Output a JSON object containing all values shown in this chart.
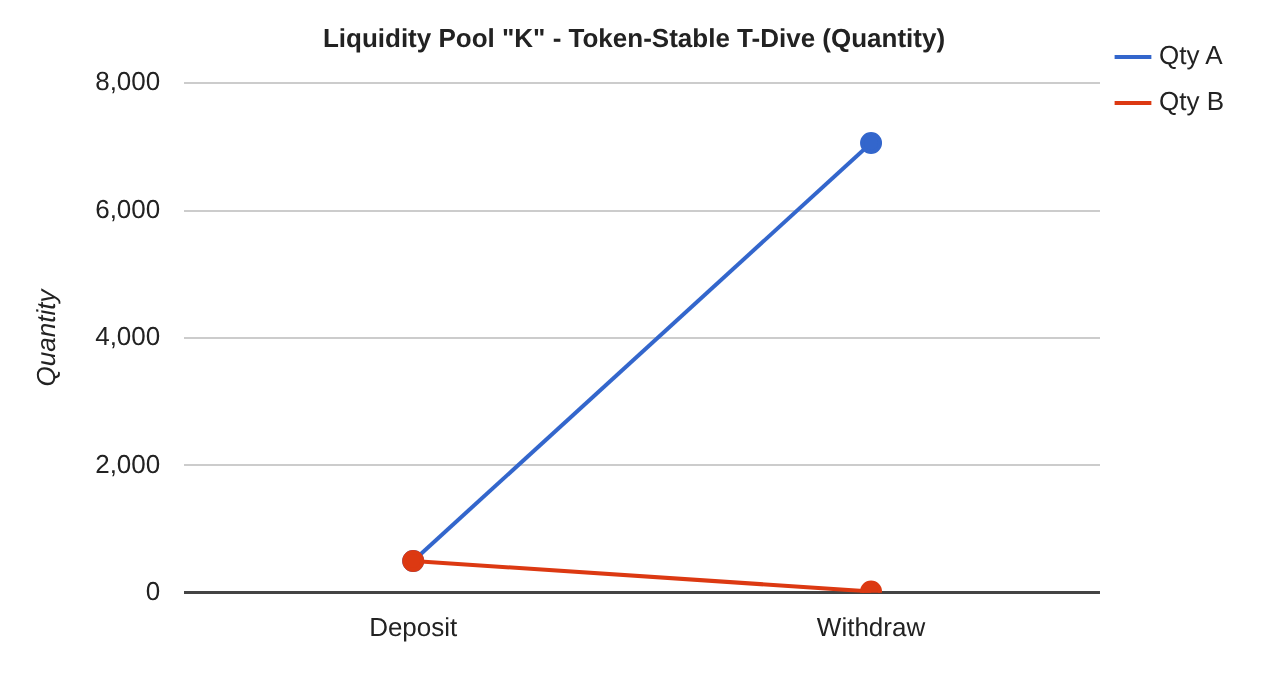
{
  "chart_data": {
    "type": "line",
    "title": "Liquidity Pool \"K\" - Token-Stable T-Dive (Quantity)",
    "ylabel": "Quantity",
    "categories": [
      "Deposit",
      "Withdraw"
    ],
    "series": [
      {
        "name": "Qty A",
        "color": "#3366cc",
        "values": [
          500,
          7060
        ]
      },
      {
        "name": "Qty B",
        "color": "#dc3912",
        "values": [
          500,
          20
        ]
      }
    ],
    "ylim": [
      0,
      8000
    ],
    "yticks": [
      {
        "value": 0,
        "label": "0"
      },
      {
        "value": 2000,
        "label": "2,000"
      },
      {
        "value": 4000,
        "label": "4,000"
      },
      {
        "value": 6000,
        "label": "6,000"
      },
      {
        "value": 8000,
        "label": "8,000"
      }
    ],
    "grid": "y",
    "legend": "right",
    "marker": "circle"
  }
}
